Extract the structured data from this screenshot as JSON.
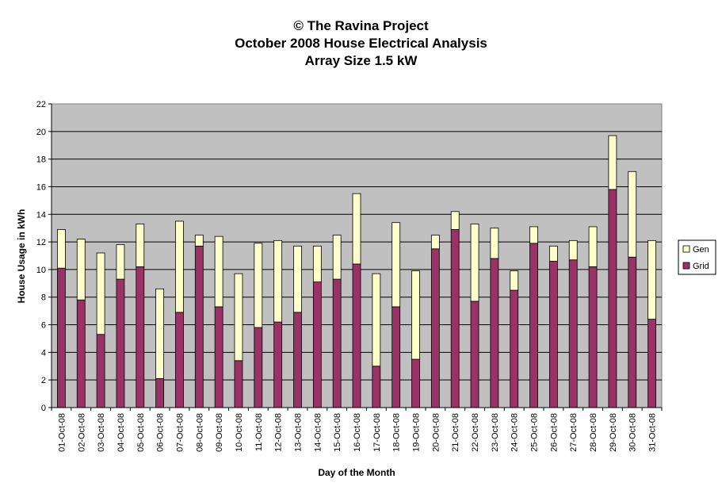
{
  "chart_data": {
    "type": "bar",
    "stacked": true,
    "title": [
      "© The Ravina Project",
      "October 2008 House Electrical Analysis",
      "Array Size 1.5 kW"
    ],
    "xlabel": "Day of the Month",
    "ylabel": "House Usage in kWh",
    "ylim": [
      0,
      22
    ],
    "yticks": [
      0,
      2,
      4,
      6,
      8,
      10,
      12,
      14,
      16,
      18,
      20,
      22
    ],
    "grid": true,
    "legend_position": "right",
    "categories": [
      "01-Oct-08",
      "02-Oct-08",
      "03-Oct-08",
      "04-Oct-08",
      "05-Oct-08",
      "06-Oct-08",
      "07-Oct-08",
      "08-Oct-08",
      "09-Oct-08",
      "10-Oct-08",
      "11-Oct-08",
      "12-Oct-08",
      "13-Oct-08",
      "14-Oct-08",
      "15-Oct-08",
      "16-Oct-08",
      "17-Oct-08",
      "18-Oct-08",
      "19-Oct-08",
      "20-Oct-08",
      "21-Oct-08",
      "22-Oct-08",
      "23-Oct-08",
      "24-Oct-08",
      "25-Oct-08",
      "26-Oct-08",
      "27-Oct-08",
      "28-Oct-08",
      "29-Oct-08",
      "30-Oct-08",
      "31-Oct-08"
    ],
    "series": [
      {
        "name": "Grid",
        "color": "#993366",
        "values": [
          10.1,
          7.8,
          5.3,
          9.3,
          10.2,
          2.1,
          6.9,
          11.7,
          7.3,
          3.4,
          5.8,
          6.2,
          6.9,
          9.1,
          9.3,
          10.4,
          3.0,
          7.3,
          3.5,
          11.5,
          12.9,
          7.7,
          10.8,
          8.5,
          11.9,
          10.6,
          10.7,
          10.2,
          15.8,
          10.9,
          6.4
        ]
      },
      {
        "name": "Gen",
        "color": "#FFFFCC",
        "values": [
          2.8,
          4.4,
          5.9,
          2.5,
          3.1,
          6.5,
          6.6,
          0.8,
          5.1,
          6.3,
          6.1,
          5.9,
          4.8,
          2.6,
          3.2,
          5.1,
          6.7,
          6.1,
          6.4,
          1.0,
          1.3,
          5.6,
          2.2,
          1.4,
          1.2,
          1.1,
          1.4,
          2.9,
          3.9,
          6.2,
          5.7
        ]
      }
    ],
    "legend": [
      {
        "name": "Gen",
        "color": "#FFFFCC"
      },
      {
        "name": "Grid",
        "color": "#993366"
      }
    ],
    "plot_background": "#C0C0C0"
  }
}
